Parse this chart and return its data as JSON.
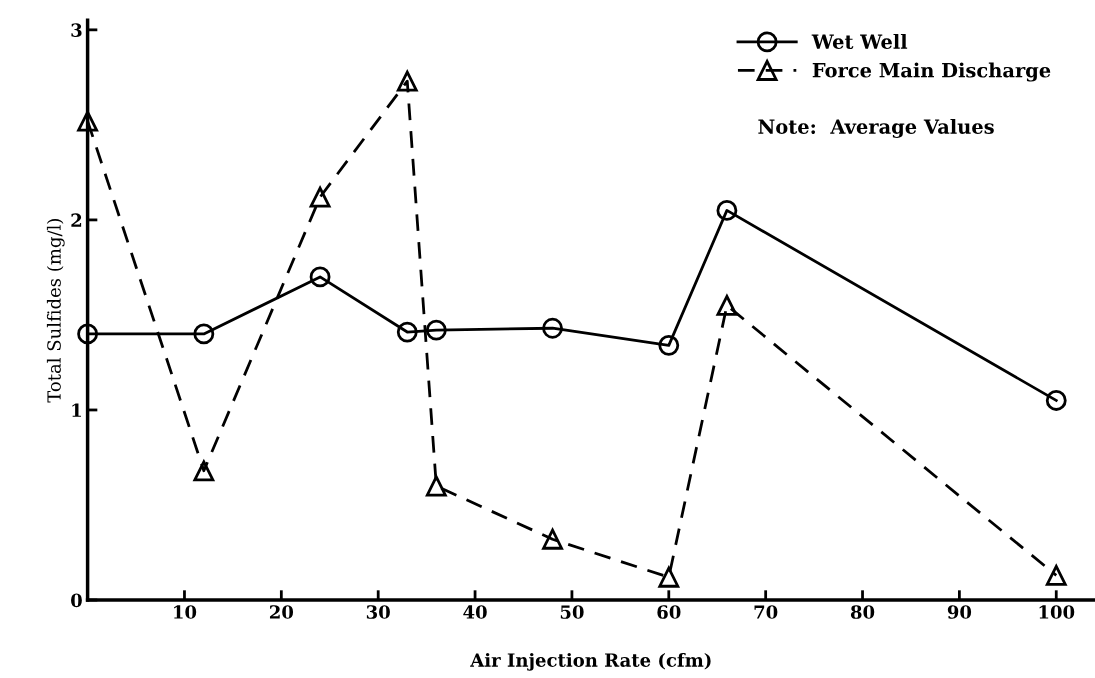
{
  "chart_data": {
    "type": "line",
    "xlabel": "Air Injection Rate (cfm)",
    "ylabel": "Total Sulfides (mg/l)",
    "xlim": [
      0,
      104
    ],
    "xticks": [
      10,
      20,
      30,
      40,
      50,
      60,
      70,
      80,
      90,
      100
    ],
    "ylim": [
      0,
      3.05
    ],
    "yticks": [
      0,
      1,
      2,
      3
    ],
    "grid": false,
    "legend": "top right",
    "series": [
      {
        "name": "Wet Well",
        "color": "#000000",
        "marker": "circle",
        "line_style": "solid",
        "x": [
          0,
          12,
          24,
          33,
          36,
          48,
          60,
          66,
          100
        ],
        "values": [
          1.4,
          1.4,
          1.7,
          1.41,
          1.42,
          1.43,
          1.34,
          2.05,
          1.05
        ]
      },
      {
        "name": "Force Main Discharge",
        "color": "#000000",
        "marker": "triangle",
        "line_style": "dashed",
        "x": [
          0,
          12,
          24,
          33,
          36,
          48,
          60,
          66,
          100
        ],
        "values": [
          2.52,
          0.68,
          2.12,
          2.73,
          0.6,
          0.32,
          0.12,
          1.55,
          0.13
        ]
      }
    ],
    "annotations": [
      "Note:  Average Values"
    ]
  }
}
